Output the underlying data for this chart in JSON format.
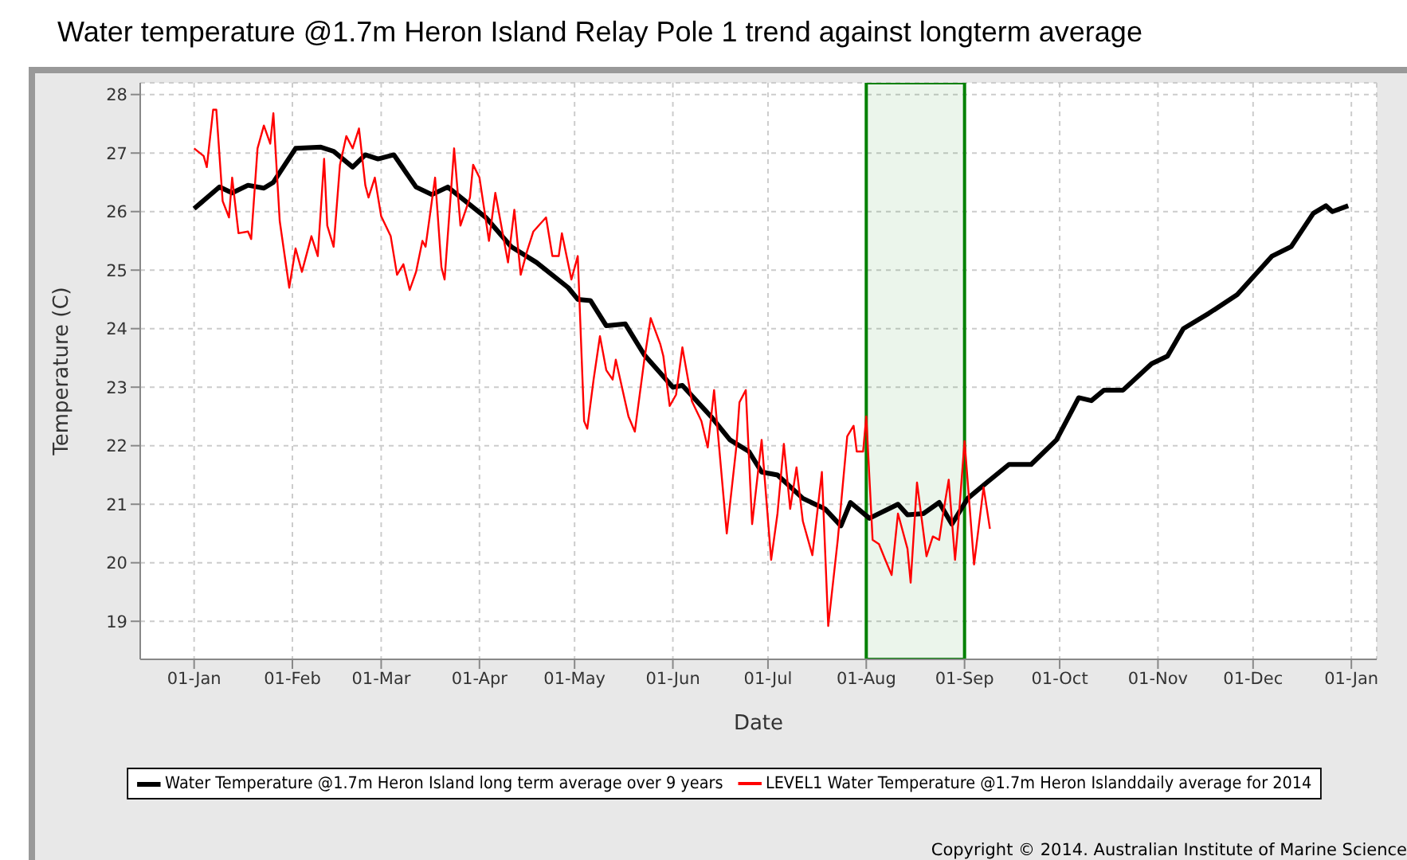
{
  "chart_data": {
    "type": "line",
    "title": "Water temperature @1.7m Heron Island Relay Pole 1 trend against longterm average",
    "xlabel": "Date",
    "ylabel": "Temperature (C)",
    "xlim": [
      "2013-12-15",
      "2015-01-09"
    ],
    "xticks": [
      {
        "value": "2014-01-01",
        "label": "01-Jan"
      },
      {
        "value": "2014-02-01",
        "label": "01-Feb"
      },
      {
        "value": "2014-03-01",
        "label": "01-Mar"
      },
      {
        "value": "2014-04-01",
        "label": "01-Apr"
      },
      {
        "value": "2014-05-01",
        "label": "01-May"
      },
      {
        "value": "2014-06-01",
        "label": "01-Jun"
      },
      {
        "value": "2014-07-01",
        "label": "01-Jul"
      },
      {
        "value": "2014-08-01",
        "label": "01-Aug"
      },
      {
        "value": "2014-09-01",
        "label": "01-Sep"
      },
      {
        "value": "2014-10-01",
        "label": "01-Oct"
      },
      {
        "value": "2014-11-01",
        "label": "01-Nov"
      },
      {
        "value": "2014-12-01",
        "label": "01-Dec"
      },
      {
        "value": "2015-01-01",
        "label": "01-Jan"
      }
    ],
    "ylim": [
      18.35,
      28.2
    ],
    "yticks": [
      19,
      20,
      21,
      22,
      23,
      24,
      25,
      26,
      27,
      28
    ],
    "grid": true,
    "legend": "bottom",
    "marker": "none",
    "line_style": "solid",
    "bands": [
      {
        "axis": "x",
        "from": "2014-08-01",
        "to": "2014-09-01",
        "color": "#008000"
      }
    ],
    "annotations": [
      "Copyright © 2014. Australian Institute of Marine Science"
    ],
    "series": [
      {
        "name": "Water Temperature @1.7m Heron Island long term average over 9 years",
        "color": "#000000",
        "x": [
          "2014-01-01",
          "2014-01-09",
          "2014-01-13",
          "2014-01-18",
          "2014-01-23",
          "2014-01-26",
          "2014-02-02",
          "2014-02-10",
          "2014-02-14",
          "2014-02-20",
          "2014-02-24",
          "2014-02-28",
          "2014-03-05",
          "2014-03-12",
          "2014-03-17",
          "2014-03-22",
          "2014-04-03",
          "2014-04-11",
          "2014-04-19",
          "2014-04-29",
          "2014-05-02",
          "2014-05-06",
          "2014-05-11",
          "2014-05-17",
          "2014-05-23",
          "2014-06-01",
          "2014-06-04",
          "2014-06-13",
          "2014-06-19",
          "2014-06-25",
          "2014-06-29",
          "2014-07-04",
          "2014-07-12",
          "2014-07-19",
          "2014-07-24",
          "2014-07-27",
          "2014-08-02",
          "2014-08-11",
          "2014-08-14",
          "2014-08-19",
          "2014-08-24",
          "2014-08-28",
          "2014-09-02",
          "2014-09-08",
          "2014-09-15",
          "2014-09-22",
          "2014-09-30",
          "2014-10-07",
          "2014-10-11",
          "2014-10-15",
          "2014-10-21",
          "2014-10-30",
          "2014-11-04",
          "2014-11-09",
          "2014-11-17",
          "2014-11-26",
          "2014-12-07",
          "2014-12-13",
          "2014-12-20",
          "2014-12-24",
          "2014-12-26",
          "2014-12-31"
        ],
        "values": [
          26.05,
          26.42,
          26.32,
          26.45,
          26.4,
          26.5,
          27.08,
          27.1,
          27.03,
          26.76,
          26.97,
          26.9,
          26.97,
          26.42,
          26.29,
          26.42,
          25.9,
          25.4,
          25.13,
          24.7,
          24.5,
          24.48,
          24.05,
          24.08,
          23.55,
          23.0,
          23.03,
          22.5,
          22.1,
          21.9,
          21.55,
          21.5,
          21.1,
          20.92,
          20.63,
          21.03,
          20.76,
          21.0,
          20.82,
          20.84,
          21.03,
          20.66,
          21.1,
          21.37,
          21.68,
          21.68,
          22.1,
          22.82,
          22.77,
          22.95,
          22.95,
          23.4,
          23.53,
          24.0,
          24.26,
          24.58,
          25.24,
          25.4,
          25.97,
          26.1,
          26.0,
          26.1
        ]
      },
      {
        "name": "LEVEL1 Water Temperature @1.7m Heron Islanddaily average for 2014",
        "color": "#ff0000",
        "x": [
          "2014-01-01",
          "2014-01-04",
          "2014-01-05",
          "2014-01-07",
          "2014-01-08",
          "2014-01-10",
          "2014-01-12",
          "2014-01-13",
          "2014-01-15",
          "2014-01-18",
          "2014-01-19",
          "2014-01-21",
          "2014-01-23",
          "2014-01-25",
          "2014-01-26",
          "2014-01-28",
          "2014-01-31",
          "2014-02-02",
          "2014-02-04",
          "2014-02-07",
          "2014-02-09",
          "2014-02-11",
          "2014-02-12",
          "2014-02-14",
          "2014-02-16",
          "2014-02-18",
          "2014-02-20",
          "2014-02-22",
          "2014-02-24",
          "2014-02-25",
          "2014-02-27",
          "2014-03-01",
          "2014-03-04",
          "2014-03-06",
          "2014-03-08",
          "2014-03-10",
          "2014-03-12",
          "2014-03-14",
          "2014-03-15",
          "2014-03-18",
          "2014-03-20",
          "2014-03-21",
          "2014-03-24",
          "2014-03-26",
          "2014-03-29",
          "2014-03-30",
          "2014-04-01",
          "2014-04-04",
          "2014-04-06",
          "2014-04-10",
          "2014-04-12",
          "2014-04-14",
          "2014-04-16",
          "2014-04-18",
          "2014-04-22",
          "2014-04-24",
          "2014-04-26",
          "2014-04-27",
          "2014-04-30",
          "2014-05-02",
          "2014-05-04",
          "2014-05-05",
          "2014-05-07",
          "2014-05-09",
          "2014-05-11",
          "2014-05-13",
          "2014-05-14",
          "2014-05-18",
          "2014-05-20",
          "2014-05-23",
          "2014-05-25",
          "2014-05-28",
          "2014-05-29",
          "2014-05-31",
          "2014-06-02",
          "2014-06-04",
          "2014-06-07",
          "2014-06-10",
          "2014-06-12",
          "2014-06-14",
          "2014-06-18",
          "2014-06-21",
          "2014-06-22",
          "2014-06-24",
          "2014-06-26",
          "2014-06-29",
          "2014-07-02",
          "2014-07-04",
          "2014-07-06",
          "2014-07-08",
          "2014-07-10",
          "2014-07-12",
          "2014-07-15",
          "2014-07-18",
          "2014-07-20",
          "2014-07-23",
          "2014-07-26",
          "2014-07-28",
          "2014-07-29",
          "2014-07-31",
          "2014-08-01",
          "2014-08-03",
          "2014-08-05",
          "2014-08-07",
          "2014-08-09",
          "2014-08-11",
          "2014-08-14",
          "2014-08-15",
          "2014-08-17",
          "2014-08-20",
          "2014-08-22",
          "2014-08-24",
          "2014-08-25",
          "2014-08-27",
          "2014-08-29",
          "2014-08-30",
          "2014-09-01",
          "2014-09-04",
          "2014-09-07",
          "2014-09-09"
        ],
        "values": [
          27.08,
          26.95,
          26.76,
          27.74,
          27.74,
          26.18,
          25.9,
          26.58,
          25.63,
          25.66,
          25.53,
          27.08,
          27.47,
          27.16,
          27.68,
          25.84,
          24.7,
          25.37,
          24.97,
          25.58,
          25.24,
          26.9,
          25.76,
          25.4,
          26.8,
          27.29,
          27.08,
          27.42,
          26.45,
          26.24,
          26.58,
          25.92,
          25.58,
          24.92,
          25.1,
          24.66,
          24.97,
          25.5,
          25.4,
          26.58,
          25.05,
          24.84,
          27.08,
          25.76,
          26.24,
          26.8,
          26.58,
          25.5,
          26.32,
          25.13,
          26.03,
          24.92,
          25.32,
          25.66,
          25.9,
          25.24,
          25.24,
          25.63,
          24.84,
          25.24,
          22.42,
          22.29,
          23.13,
          23.87,
          23.29,
          23.13,
          23.47,
          22.5,
          22.24,
          23.47,
          24.18,
          23.74,
          23.53,
          22.68,
          22.87,
          23.68,
          22.76,
          22.42,
          21.97,
          22.95,
          20.5,
          21.97,
          22.74,
          22.95,
          20.66,
          22.1,
          20.05,
          20.84,
          22.03,
          20.92,
          21.63,
          20.71,
          20.13,
          21.55,
          18.92,
          20.39,
          22.16,
          22.34,
          21.9,
          21.9,
          22.5,
          20.39,
          20.32,
          20.05,
          19.79,
          20.84,
          20.24,
          19.66,
          21.37,
          20.11,
          20.45,
          20.39,
          20.76,
          21.42,
          20.05,
          20.66,
          22.08,
          19.97,
          21.29,
          20.58
        ]
      }
    ]
  }
}
